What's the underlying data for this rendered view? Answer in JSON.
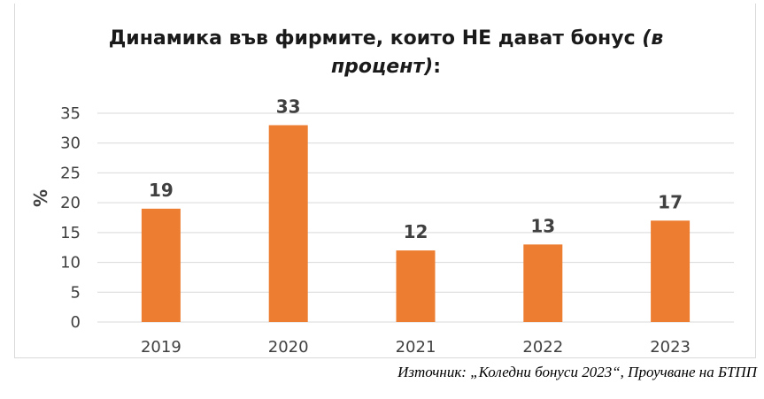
{
  "chart_data": {
    "type": "bar",
    "title_line1": "Динамика във фирмите, които НЕ дават бонус ",
    "title_line1_italic": "(в",
    "title_line2_italic": "процент)",
    "title_line2_tail": ":",
    "ylabel": "%",
    "xlabel": "",
    "categories": [
      "2019",
      "2020",
      "2021",
      "2022",
      "2023"
    ],
    "values": [
      19,
      33,
      12,
      13,
      17
    ],
    "ylim": [
      0,
      35
    ],
    "yticks": [
      0,
      5,
      10,
      15,
      20,
      25,
      30,
      35
    ],
    "grid": true,
    "legend": "none",
    "bar_color": "#ed7d31"
  },
  "source": "Източник: „Коледни бонуси 2023“, Проучване на БТПП"
}
